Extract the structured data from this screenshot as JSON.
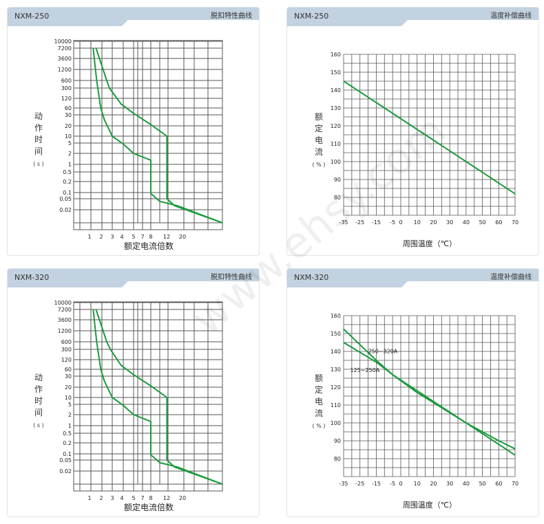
{
  "watermark": "www.ehsy.com",
  "colors": {
    "curve": "#1a9a3c",
    "grid": "#555555",
    "header": "#c3d2e0"
  },
  "panels": [
    {
      "model": "NXM-250",
      "title": "脱扣特性曲线"
    },
    {
      "model": "NXM-250",
      "title": "温度补偿曲线"
    },
    {
      "model": "NXM-320",
      "title": "脱扣特性曲线"
    },
    {
      "model": "NXM-320",
      "title": "温度补偿曲线"
    }
  ],
  "chart_data": [
    {
      "type": "line",
      "model": "NXM-250",
      "title": "脱扣特性曲线",
      "xlabel": "额定电流倍数",
      "ylabel": [
        "动",
        "作",
        "时",
        "间",
        "( s )"
      ],
      "xticks": [
        "1",
        "2",
        "3",
        "4",
        "5",
        "7",
        "8",
        "12",
        "20"
      ],
      "yticks": [
        "10000",
        "7200",
        "3600",
        "1200",
        "600",
        "300",
        "120",
        "60",
        "30",
        "20",
        "10",
        "5",
        "2",
        "1",
        "0.5",
        "0.2",
        "0.1",
        "0.05",
        "0.02"
      ],
      "series": [
        {
          "name": "lower",
          "points": [
            [
              1.24,
              7200
            ],
            [
              1.53,
              600
            ],
            [
              1.94,
              60
            ],
            [
              2.25,
              25
            ],
            [
              3,
              10
            ],
            [
              4.1,
              4.6
            ],
            [
              5,
              2
            ],
            [
              8,
              1.3
            ],
            [
              8,
              0.09
            ],
            [
              10.1,
              0.04
            ],
            [
              16.9,
              0.028
            ],
            [
              40,
              0.01
            ]
          ]
        },
        {
          "name": "upper",
          "points": [
            [
              1.47,
              7200
            ],
            [
              2.45,
              600
            ],
            [
              2.7,
              300
            ],
            [
              3.9,
              80
            ],
            [
              5,
              35
            ],
            [
              8,
              21
            ],
            [
              12.1,
              10
            ],
            [
              12.1,
              0.05
            ],
            [
              15.5,
              0.028
            ],
            [
              40,
              0.01
            ]
          ]
        }
      ]
    },
    {
      "type": "line",
      "model": "NXM-250",
      "title": "温度补偿曲线",
      "xlabel": "周围温度（℃）",
      "ylabel": [
        "额",
        "定",
        "电",
        "流",
        "( % )"
      ],
      "xticks": [
        "-35",
        "-25",
        "-15",
        "-5",
        "0",
        "10",
        "20",
        "30",
        "40",
        "50",
        "60",
        "70"
      ],
      "yticks": [
        "160",
        "150",
        "140",
        "130",
        "120",
        "110",
        "100",
        "90",
        "80"
      ],
      "xlim": [
        -35,
        70
      ],
      "ylim": [
        70,
        160
      ],
      "series": [
        {
          "name": "rated",
          "points": [
            [
              -35,
              145
            ],
            [
              70,
              82
            ]
          ]
        }
      ]
    },
    {
      "type": "line",
      "model": "NXM-320",
      "title": "脱扣特性曲线",
      "xlabel": "额定电流倍数",
      "ylabel": [
        "动",
        "作",
        "时",
        "间",
        "( s )"
      ],
      "xticks": [
        "1",
        "2",
        "3",
        "4",
        "5",
        "7",
        "8",
        "12",
        "20"
      ],
      "yticks": [
        "10000",
        "7200",
        "3600",
        "1200",
        "600",
        "300",
        "120",
        "60",
        "30",
        "20",
        "10",
        "5",
        "2",
        "1",
        "0.5",
        "0.2",
        "0.1",
        "0.05",
        "0.02"
      ],
      "series": [
        {
          "name": "lower",
          "points": [
            [
              1.24,
              7200
            ],
            [
              1.53,
              600
            ],
            [
              1.94,
              60
            ],
            [
              2.25,
              25
            ],
            [
              3,
              10
            ],
            [
              4.1,
              4.6
            ],
            [
              5,
              2
            ],
            [
              8,
              1.3
            ],
            [
              8,
              0.09
            ],
            [
              10.1,
              0.04
            ],
            [
              16.9,
              0.028
            ],
            [
              40,
              0.01
            ]
          ]
        },
        {
          "name": "upper",
          "points": [
            [
              1.47,
              7200
            ],
            [
              2.45,
              600
            ],
            [
              2.8,
              300
            ],
            [
              3.9,
              80
            ],
            [
              5,
              35
            ],
            [
              8,
              21
            ],
            [
              12.1,
              10
            ],
            [
              12.1,
              0.05
            ],
            [
              15.5,
              0.028
            ],
            [
              40,
              0.01
            ]
          ]
        }
      ]
    },
    {
      "type": "line",
      "model": "NXM-320",
      "title": "温度补偿曲线",
      "xlabel": "周围温度（℃）",
      "ylabel": [
        "额",
        "定",
        "电",
        "流",
        "( % )"
      ],
      "xticks": [
        "-35",
        "-25",
        "-15",
        "-5",
        "0",
        "10",
        "20",
        "30",
        "40",
        "50",
        "60",
        "70"
      ],
      "yticks": [
        "160",
        "150",
        "140",
        "130",
        "120",
        "110",
        "100",
        "90",
        "80"
      ],
      "xlim": [
        -35,
        70
      ],
      "ylim": [
        70,
        160
      ],
      "series": [
        {
          "name": "250~320A",
          "points": [
            [
              -35,
              152.5
            ],
            [
              -15,
              135
            ],
            [
              -5,
              127
            ],
            [
              10,
              118
            ],
            [
              40,
              100
            ],
            [
              70,
              82
            ]
          ]
        },
        {
          "name": "125~250A",
          "points": [
            [
              -35,
              145
            ],
            [
              -15,
              134
            ],
            [
              -5,
              127
            ],
            [
              10,
              117
            ],
            [
              40,
              100
            ],
            [
              60,
              90
            ],
            [
              70,
              85.5
            ]
          ]
        }
      ],
      "annotations": [
        "250~320A",
        "125~250A"
      ]
    }
  ]
}
